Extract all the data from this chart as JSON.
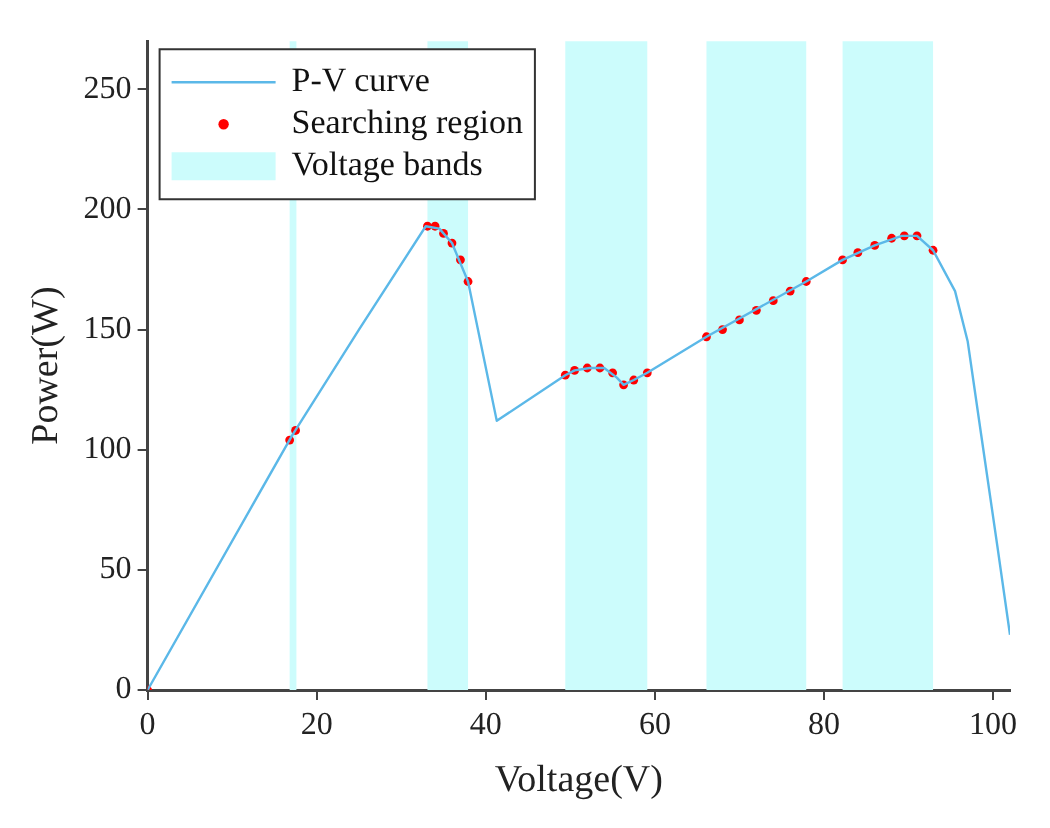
{
  "chart_data": {
    "type": "line",
    "xlabel": "Voltage(V)",
    "ylabel": "Power(W)",
    "xlim": [
      0,
      102
    ],
    "ylim": [
      0,
      270
    ],
    "xticks": [
      0,
      20,
      40,
      60,
      80,
      100
    ],
    "yticks": [
      0,
      50,
      100,
      150,
      200,
      250
    ],
    "grid": false,
    "legend": "top left",
    "series": [
      {
        "name": "P-V curve",
        "type": "line",
        "color": "#5bb8e8",
        "marker": "none",
        "x": [
          0,
          17.1,
          25,
          32.9,
          34.5,
          36,
          37.9,
          41.3,
          49.4,
          50.5,
          52.3,
          54,
          55.5,
          56.3,
          57.5,
          59.1,
          66.1,
          77.9,
          82.2,
          86,
          89.2,
          91,
          92.9,
          95.5,
          97,
          98.6,
          100.5,
          102
        ],
        "values": [
          0,
          106,
          150,
          193,
          192,
          186,
          170,
          112,
          131,
          133,
          134,
          134,
          130,
          127,
          129,
          132,
          147,
          170,
          179,
          185,
          189,
          189,
          183,
          166,
          145,
          106,
          60,
          23
        ]
      },
      {
        "name": "Searching region",
        "type": "scatter",
        "color": "#ff0000",
        "marker": "circle",
        "x": [
          0,
          16.8,
          17.5,
          33.1,
          34,
          35,
          36,
          37,
          37.9,
          49.4,
          50.5,
          52,
          53.5,
          55,
          56.3,
          57.5,
          59.1,
          66.1,
          68,
          70,
          72,
          74,
          76,
          77.9,
          82.2,
          84,
          86,
          88,
          89.5,
          91,
          92.9
        ],
        "values": [
          0,
          104,
          108,
          193,
          193,
          190,
          186,
          179,
          170,
          131,
          133,
          134,
          134,
          132,
          127,
          129,
          132,
          147,
          150,
          154,
          158,
          162,
          166,
          170,
          179,
          182,
          185,
          188,
          189,
          189,
          183
        ]
      }
    ],
    "bands": [
      {
        "axis": "x",
        "from": 16.8,
        "to": 17.6,
        "label": "Voltage bands",
        "color": "#ccfcfc"
      },
      {
        "axis": "x",
        "from": 33.1,
        "to": 37.9,
        "color": "#ccfcfc"
      },
      {
        "axis": "x",
        "from": 49.4,
        "to": 59.1,
        "color": "#ccfcfc"
      },
      {
        "axis": "x",
        "from": 66.1,
        "to": 77.9,
        "color": "#ccfcfc"
      },
      {
        "axis": "x",
        "from": 82.2,
        "to": 92.9,
        "color": "#ccfcfc"
      }
    ]
  }
}
